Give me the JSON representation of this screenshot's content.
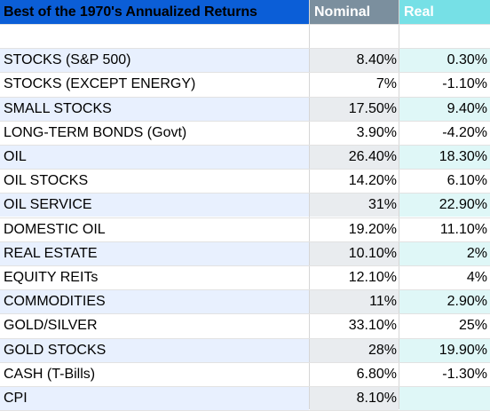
{
  "header": {
    "title": "Best of the 1970's Annualized Returns",
    "nominal": "Nominal",
    "real": "Real"
  },
  "rows": [
    {
      "label": "",
      "nominal": "",
      "real": ""
    },
    {
      "label": "STOCKS (S&P 500)",
      "nominal": "8.40%",
      "real": "0.30%"
    },
    {
      "label": "STOCKS (EXCEPT ENERGY)",
      "nominal": "7%",
      "real": "-1.10%"
    },
    {
      "label": "SMALL STOCKS",
      "nominal": "17.50%",
      "real": "9.40%"
    },
    {
      "label": "LONG-TERM BONDS (Govt)",
      "nominal": "3.90%",
      "real": "-4.20%"
    },
    {
      "label": "OIL",
      "nominal": "26.40%",
      "real": "18.30%"
    },
    {
      "label": "OIL STOCKS",
      "nominal": "14.20%",
      "real": "6.10%"
    },
    {
      "label": "OIL SERVICE",
      "nominal": "31%",
      "real": "22.90%"
    },
    {
      "label": "DOMESTIC OIL",
      "nominal": "19.20%",
      "real": "11.10%"
    },
    {
      "label": "REAL ESTATE",
      "nominal": "10.10%",
      "real": "2%"
    },
    {
      "label": "EQUITY REITs",
      "nominal": "12.10%",
      "real": "4%"
    },
    {
      "label": "COMMODITIES",
      "nominal": "11%",
      "real": "2.90%"
    },
    {
      "label": "GOLD/SILVER",
      "nominal": "33.10%",
      "real": "25%"
    },
    {
      "label": "GOLD STOCKS",
      "nominal": "28%",
      "real": "19.90%"
    },
    {
      "label": "CASH (T-Bills)",
      "nominal": "6.80%",
      "real": "-1.30%"
    },
    {
      "label": "CPI",
      "nominal": "8.10%",
      "real": ""
    }
  ],
  "colors": {
    "header_title_bg": "#0b5ed7",
    "header_nominal_bg": "#7b8f9e",
    "header_real_bg": "#76e0e6",
    "band_label_bg": "#e8f0fe",
    "band_nominal_bg": "#e9ecef",
    "band_real_bg": "#dff7f7"
  }
}
